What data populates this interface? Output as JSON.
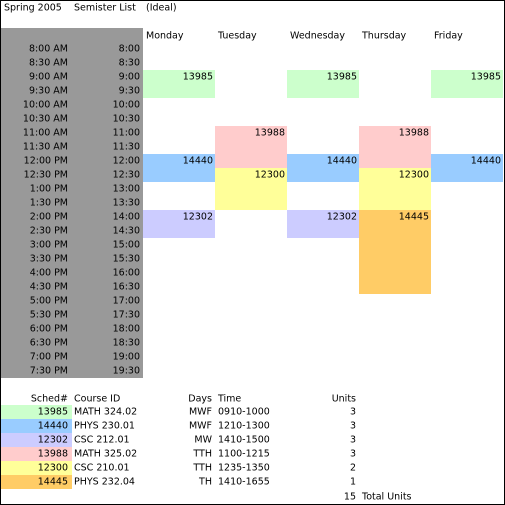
{
  "header": {
    "term": "Spring 2005",
    "list": "Semister List",
    "mode": "(Ideal)"
  },
  "schedule": {
    "days": [
      "Monday",
      "Tuesday",
      "Wednesday",
      "Thursday",
      "Friday"
    ],
    "times": [
      {
        "ampm": "8:00 AM",
        "h24": "8:00"
      },
      {
        "ampm": "8:30 AM",
        "h24": "8:30"
      },
      {
        "ampm": "9:00 AM",
        "h24": "9:00"
      },
      {
        "ampm": "9:30 AM",
        "h24": "9:30"
      },
      {
        "ampm": "10:00 AM",
        "h24": "10:00"
      },
      {
        "ampm": "10:30 AM",
        "h24": "10:30"
      },
      {
        "ampm": "11:00 AM",
        "h24": "11:00"
      },
      {
        "ampm": "11:30 AM",
        "h24": "11:30"
      },
      {
        "ampm": "12:00 PM",
        "h24": "12:00"
      },
      {
        "ampm": "12:30 PM",
        "h24": "12:30"
      },
      {
        "ampm": "1:00 PM",
        "h24": "13:00"
      },
      {
        "ampm": "1:30 PM",
        "h24": "13:30"
      },
      {
        "ampm": "2:00 PM",
        "h24": "14:00"
      },
      {
        "ampm": "2:30 PM",
        "h24": "14:30"
      },
      {
        "ampm": "3:00 PM",
        "h24": "15:00"
      },
      {
        "ampm": "3:30 PM",
        "h24": "15:30"
      },
      {
        "ampm": "4:00 PM",
        "h24": "16:00"
      },
      {
        "ampm": "4:30 PM",
        "h24": "16:30"
      },
      {
        "ampm": "5:00 PM",
        "h24": "17:00"
      },
      {
        "ampm": "5:30 PM",
        "h24": "17:30"
      },
      {
        "ampm": "6:00 PM",
        "h24": "18:00"
      },
      {
        "ampm": "6:30 PM",
        "h24": "18:30"
      },
      {
        "ampm": "7:00 PM",
        "h24": "19:00"
      },
      {
        "ampm": "7:30 PM",
        "h24": "19:30"
      }
    ]
  },
  "legend": {
    "columns": [
      "Sched#",
      "Course ID",
      "Days",
      "Time",
      "Units"
    ],
    "rows": [
      {
        "sched": "13985",
        "course": "MATH 324.02",
        "days": "MWF",
        "time": "0910-1000",
        "units": 3
      },
      {
        "sched": "14440",
        "course": "PHYS 230.01",
        "days": "MWF",
        "time": "1210-1300",
        "units": 3
      },
      {
        "sched": "12302",
        "course": "CSC 212.01",
        "days": "MW",
        "time": "1410-1500",
        "units": 3
      },
      {
        "sched": "13988",
        "course": "MATH 325.02",
        "days": "TTH",
        "time": "1100-1215",
        "units": 3
      },
      {
        "sched": "12300",
        "course": "CSC 210.01",
        "days": "TTH",
        "time": "1235-1350",
        "units": 2
      },
      {
        "sched": "14445",
        "course": "PHYS 232.04",
        "days": "TH",
        "time": "1410-1655",
        "units": 1
      }
    ],
    "total": 15,
    "total_label": "Total Units"
  }
}
